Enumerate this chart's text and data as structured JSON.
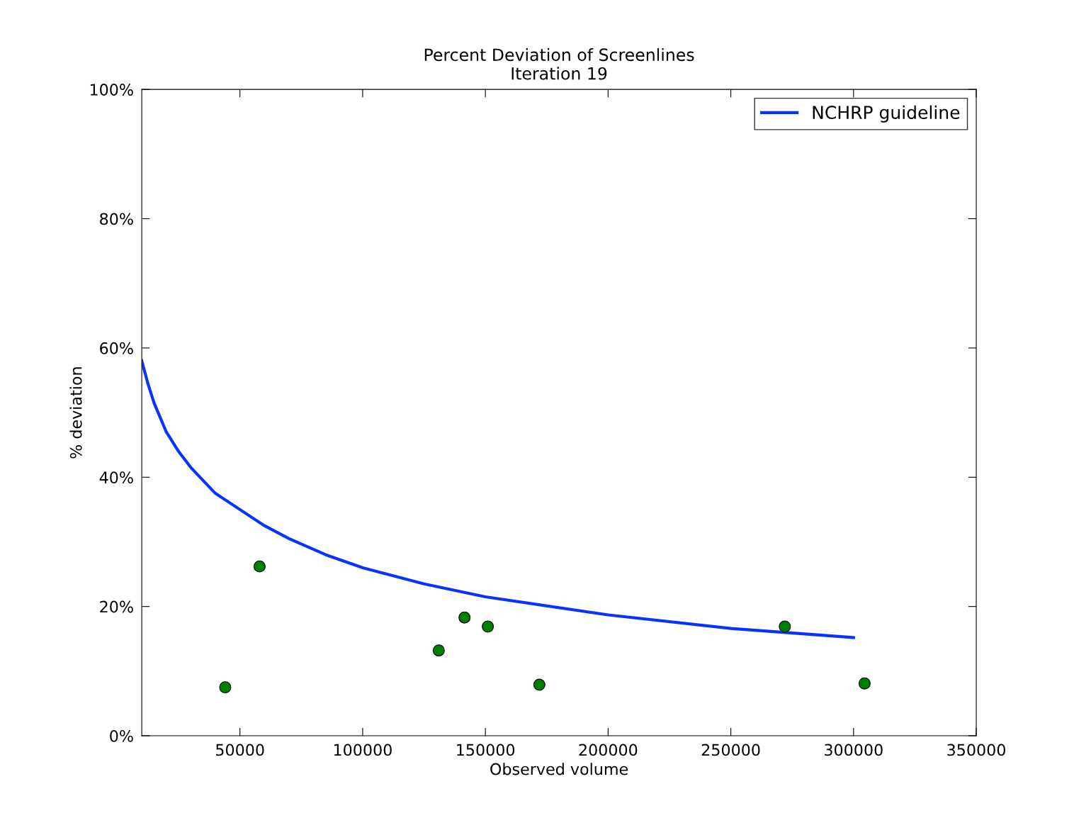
{
  "chart_data": {
    "type": "scatter",
    "title": "Percent Deviation of Screenlines",
    "subtitle": "Iteration 19",
    "xlabel": "Observed volume",
    "ylabel": "% deviation",
    "xlim": [
      10000,
      350000
    ],
    "xticks": [
      50000,
      100000,
      150000,
      200000,
      250000,
      300000,
      350000
    ],
    "ylim": [
      0,
      100
    ],
    "yticks": [
      {
        "value": 0,
        "label": "0%"
      },
      {
        "value": 20,
        "label": "20%"
      },
      {
        "value": 40,
        "label": "40%"
      },
      {
        "value": 60,
        "label": "60%"
      },
      {
        "value": 80,
        "label": "80%"
      },
      {
        "value": 100,
        "label": "100%"
      }
    ],
    "grid": false,
    "legend": "top right",
    "series": [
      {
        "name": "NCHRP guideline",
        "type": "line",
        "color": "#0a32ff",
        "marker": "none",
        "line_style": "solid",
        "x": [
          10000,
          12500,
          15000,
          20000,
          25000,
          30000,
          40000,
          50000,
          60000,
          70000,
          85000,
          100000,
          125000,
          150000,
          200000,
          250000,
          300000
        ],
        "values": [
          58,
          54.5,
          51.5,
          47,
          44,
          41.5,
          37.5,
          35,
          32.5,
          30.5,
          28,
          26,
          23.5,
          21.5,
          18.7,
          16.6,
          15.2
        ]
      },
      {
        "color": "#008000",
        "marker": "circle",
        "x": [
          44000,
          58000,
          131000,
          141500,
          151000,
          172000,
          272000,
          304500
        ],
        "values": [
          7.5,
          26.2,
          13.2,
          18.3,
          16.9,
          7.9,
          16.9,
          8.1
        ]
      }
    ]
  }
}
